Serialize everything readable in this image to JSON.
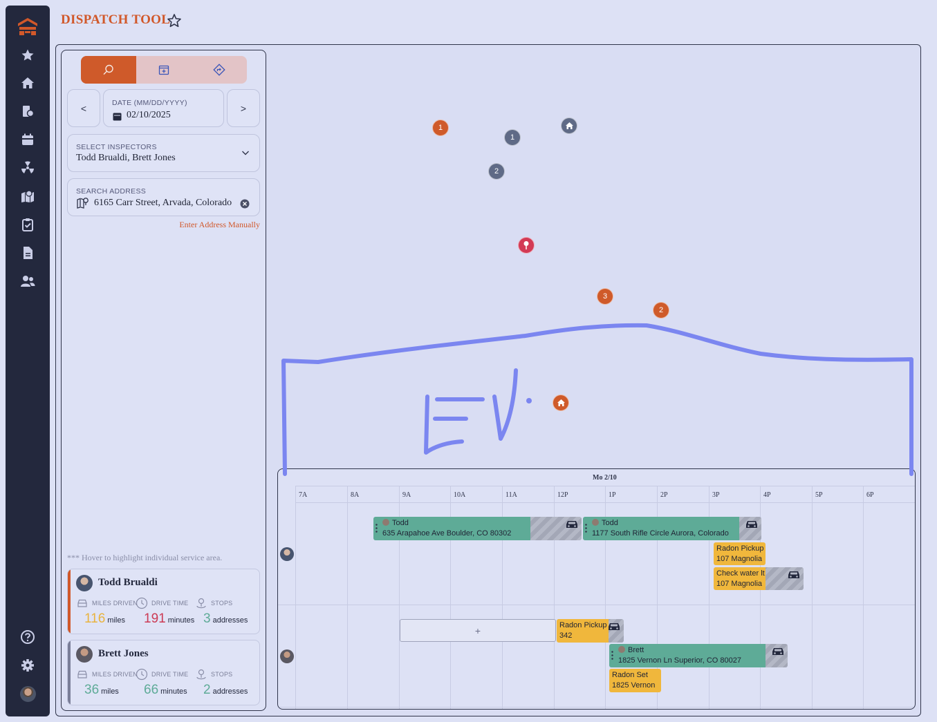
{
  "app": {
    "title": "DISPATCH TOOL"
  },
  "nav": {
    "items": [
      "star-icon",
      "home-icon",
      "property-docs-icon",
      "calendar-icon",
      "radiation-icon",
      "map-pin-icon",
      "clipboard-check-icon",
      "document-icon",
      "users-icon"
    ],
    "bottom": [
      "help-icon",
      "settings-icon",
      "user-avatar"
    ]
  },
  "search_panel": {
    "tabs": [
      "search-icon",
      "calendar-add-icon",
      "route-icon"
    ],
    "active_tab": 0,
    "prev": "<",
    "next": ">",
    "date_label": "DATE (MM/DD/YYYY)",
    "date_value": "02/10/2025",
    "inspectors_label": "SELECT INSPECTORS",
    "inspectors_value": "Todd Brualdi, Brett Jones",
    "address_label": "SEARCH ADDRESS",
    "address_value": "6165 Carr Street, Arvada, Colorado",
    "manual_link": "Enter Address Manually",
    "hover_note": "*** Hover to highlight individual service area."
  },
  "inspectors": [
    {
      "name": "Todd Brualdi",
      "accent": "#d1582a",
      "miles_label": "MILES DRIVEN",
      "miles": "116",
      "miles_unit": "miles",
      "miles_color": "#e9b33e",
      "drive_label": "DRIVE TIME",
      "drive": "191",
      "drive_unit": "minutes",
      "drive_color": "#cc3a54",
      "stops_label": "STOPS",
      "stops": "3",
      "stops_unit": "addresses",
      "stops_color": "#5eab97"
    },
    {
      "name": "Brett Jones",
      "accent": "#7a7e98",
      "miles_label": "MILES DRIVEN",
      "miles": "36",
      "miles_unit": "miles",
      "miles_color": "#5eab97",
      "drive_label": "DRIVE TIME",
      "drive": "66",
      "drive_unit": "minutes",
      "drive_color": "#5eab97",
      "stops_label": "STOPS",
      "stops": "2",
      "stops_unit": "addresses",
      "stops_color": "#5eab97"
    }
  ],
  "map": {
    "markers": [
      "1",
      "1",
      "home-icon",
      "2",
      "pin-icon",
      "3",
      "2",
      "home-icon"
    ],
    "drawing_text": "EV"
  },
  "schedule": {
    "day": "Mo 2/10",
    "hours": [
      "7A",
      "8A",
      "9A",
      "10A",
      "11A",
      "12P",
      "1P",
      "2P",
      "3P",
      "4P",
      "5P",
      "6P"
    ],
    "add_symbol": "+",
    "events": [
      {
        "name": "Todd",
        "address": "635 Arapahoe Ave Boulder, CO 80302"
      },
      {
        "name": "Todd",
        "address": "1177 South Rifle Circle Aurora, Colorado"
      },
      {
        "name": "Radon Pickup",
        "address": "107 Magnolia"
      },
      {
        "name": "Check water lt",
        "address": "107 Magnolia"
      },
      {
        "name": "Radon Pickup",
        "address": "342"
      },
      {
        "name": "Brett",
        "address": "1825 Vernon Ln Superior, CO 80027"
      },
      {
        "name": "Radon Set",
        "address": "1825 Vernon"
      }
    ]
  },
  "colors": {
    "brand": "#d1582a",
    "nav_bg": "#23283d",
    "event_green": "#5eab97",
    "event_yellow": "#f0b73c",
    "drawing": "#7b86f0"
  }
}
